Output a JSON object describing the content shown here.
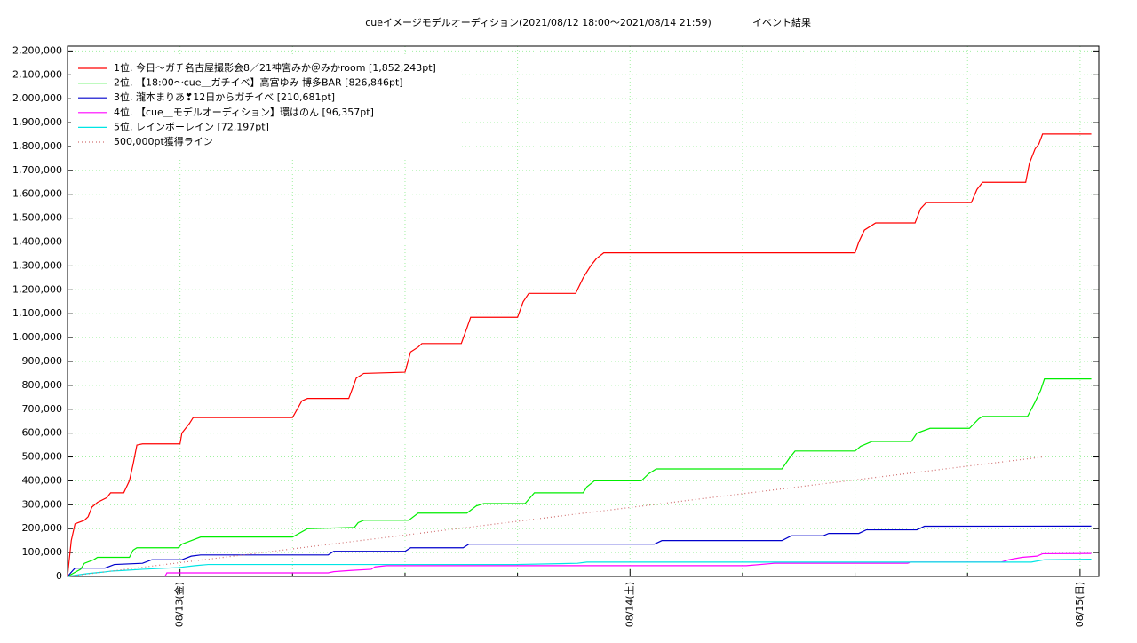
{
  "chart_data": {
    "type": "line",
    "title": "cueイメージモデルオーディション(2021/08/12 18:00～2021/08/14 21:59)",
    "subtitle": "イベント結果",
    "xlim": [
      0,
      55
    ],
    "xticks": [
      {
        "value": 6,
        "label": "08/13(金)"
      },
      {
        "value": 30,
        "label": "08/14(土)"
      },
      {
        "value": 54,
        "label": "08/15(日)"
      }
    ],
    "xminor": [
      12,
      18,
      24,
      36,
      42,
      48
    ],
    "ylim": [
      0,
      2220000
    ],
    "yticks": [
      {
        "value": 0,
        "label": "0"
      },
      {
        "value": 100000,
        "label": "100,000"
      },
      {
        "value": 200000,
        "label": "200,000"
      },
      {
        "value": 300000,
        "label": "300,000"
      },
      {
        "value": 400000,
        "label": "400,000"
      },
      {
        "value": 500000,
        "label": "500,000"
      },
      {
        "value": 600000,
        "label": "600,000"
      },
      {
        "value": 700000,
        "label": "700,000"
      },
      {
        "value": 800000,
        "label": "800,000"
      },
      {
        "value": 900000,
        "label": "900,000"
      },
      {
        "value": 1000000,
        "label": "1,000,000"
      },
      {
        "value": 1100000,
        "label": "1,100,000"
      },
      {
        "value": 1200000,
        "label": "1,200,000"
      },
      {
        "value": 1300000,
        "label": "1,300,000"
      },
      {
        "value": 1400000,
        "label": "1,400,000"
      },
      {
        "value": 1500000,
        "label": "1,500,000"
      },
      {
        "value": 1600000,
        "label": "1,600,000"
      },
      {
        "value": 1700000,
        "label": "1,700,000"
      },
      {
        "value": 1800000,
        "label": "1,800,000"
      },
      {
        "value": 1900000,
        "label": "1,900,000"
      },
      {
        "value": 2000000,
        "label": "2,000,000"
      },
      {
        "value": 2100000,
        "label": "2,100,000"
      },
      {
        "value": 2200000,
        "label": "2,200,000"
      }
    ],
    "grid": true,
    "legend": "top-left",
    "series": [
      {
        "name": "1位. 今日〜ガチ名古屋撮影会8／21神宮みか＠みかroom [1,852,243pt]",
        "color": "#ff0000",
        "style": "solid",
        "x": [
          0,
          0.2,
          0.4,
          0.9,
          1.1,
          1.3,
          1.6,
          2.1,
          2.3,
          3.0,
          3.3,
          3.5,
          3.7,
          4.0,
          6.0,
          6.1,
          6.5,
          6.7,
          12.0,
          12.5,
          12.8,
          15.0,
          15.4,
          15.8,
          18.0,
          18.3,
          18.7,
          18.9,
          21.0,
          21.3,
          21.5,
          24.0,
          24.3,
          24.6,
          27.1,
          27.5,
          27.9,
          28.2,
          28.6,
          42.0,
          42.2,
          42.5,
          42.9,
          43.1,
          45.2,
          45.5,
          45.8,
          48.2,
          48.5,
          48.8,
          51.1,
          51.3,
          51.6,
          51.8,
          52.0,
          54.6
        ],
        "values": [
          0,
          150000,
          220000,
          235000,
          250000,
          290000,
          310000,
          330000,
          350000,
          350000,
          400000,
          470000,
          550000,
          555000,
          555000,
          600000,
          640000,
          665000,
          665000,
          735000,
          745000,
          745000,
          830000,
          850000,
          855000,
          940000,
          960000,
          975000,
          975000,
          1040000,
          1085000,
          1085000,
          1150000,
          1185000,
          1185000,
          1250000,
          1300000,
          1330000,
          1355000,
          1355000,
          1400000,
          1450000,
          1470000,
          1480000,
          1480000,
          1540000,
          1565000,
          1565000,
          1620000,
          1650000,
          1650000,
          1730000,
          1790000,
          1810000,
          1852243,
          1852243
        ]
      },
      {
        "name": "2位. 【18:00〜cue＿ガチイベ】高宮ゆみ 博多BAR [826,846pt]",
        "color": "#00ee00",
        "style": "solid",
        "x": [
          0,
          0.7,
          0.9,
          1.4,
          1.6,
          3.3,
          3.5,
          3.7,
          5.9,
          6.1,
          6.6,
          7.1,
          12.0,
          12.8,
          15.3,
          15.5,
          15.8,
          18.2,
          18.7,
          21.3,
          21.8,
          22.2,
          24.4,
          24.9,
          27.5,
          27.7,
          28.1,
          30.6,
          31.0,
          31.4,
          38.1,
          38.5,
          38.8,
          42.0,
          42.3,
          42.9,
          45.0,
          45.3,
          46.0,
          48.1,
          48.6,
          48.8,
          51.2,
          51.6,
          51.9,
          52.1,
          54.6
        ],
        "values": [
          0,
          30000,
          55000,
          70000,
          80000,
          80000,
          110000,
          120000,
          120000,
          135000,
          150000,
          165000,
          165000,
          200000,
          205000,
          225000,
          235000,
          235000,
          265000,
          265000,
          295000,
          305000,
          305000,
          350000,
          350000,
          375000,
          400000,
          400000,
          430000,
          450000,
          450000,
          495000,
          525000,
          525000,
          545000,
          565000,
          565000,
          600000,
          620000,
          620000,
          660000,
          670000,
          670000,
          730000,
          780000,
          826846,
          826846
        ]
      },
      {
        "name": "3位. 瀧本まりあ❣12日からガチイベ [210,681pt]",
        "color": "#0000cc",
        "style": "solid",
        "x": [
          0,
          0.4,
          2.0,
          2.5,
          4.0,
          4.5,
          6.1,
          6.6,
          7.1,
          13.9,
          14.2,
          18.0,
          18.3,
          21.1,
          21.4,
          31.3,
          31.7,
          38.1,
          38.6,
          40.3,
          40.6,
          42.2,
          42.6,
          45.3,
          45.7,
          54.6
        ],
        "values": [
          0,
          35000,
          35000,
          50000,
          55000,
          70000,
          70000,
          85000,
          90000,
          90000,
          105000,
          105000,
          120000,
          120000,
          135000,
          135000,
          150000,
          150000,
          170000,
          170000,
          180000,
          180000,
          195000,
          195000,
          210000,
          210681
        ]
      },
      {
        "name": "4位. 【cue＿モデルオーディション】環はのん [96,357pt]",
        "color": "#ff00ff",
        "style": "solid",
        "x": [
          5.2,
          5.3,
          13.9,
          14.2,
          15.1,
          16.2,
          16.4,
          17.0,
          36.2,
          37.7,
          44.8,
          45.0,
          49.8,
          50.2,
          50.9,
          51.7,
          52.0,
          54.6
        ],
        "values": [
          0,
          15000,
          15000,
          20000,
          25000,
          30000,
          40000,
          45000,
          45000,
          55000,
          55000,
          60000,
          60000,
          70000,
          80000,
          85000,
          95000,
          96357
        ]
      },
      {
        "name": "5位. レインボーレイン [72,197pt]",
        "color": "#00e5e5",
        "style": "solid",
        "x": [
          0,
          0.7,
          1.1,
          1.9,
          2.3,
          3.0,
          4.0,
          5.9,
          6.8,
          7.5,
          23.9,
          27.2,
          27.7,
          51.4,
          52.1,
          54.6
        ],
        "values": [
          0,
          8000,
          12000,
          18000,
          22000,
          25000,
          30000,
          37000,
          45000,
          50000,
          50000,
          55000,
          60000,
          60000,
          70000,
          72197
        ]
      },
      {
        "name": "500,000pt獲得ライン",
        "color": "#d07070",
        "style": "dotted",
        "x": [
          0,
          52
        ],
        "values": [
          0,
          500000
        ]
      }
    ]
  }
}
